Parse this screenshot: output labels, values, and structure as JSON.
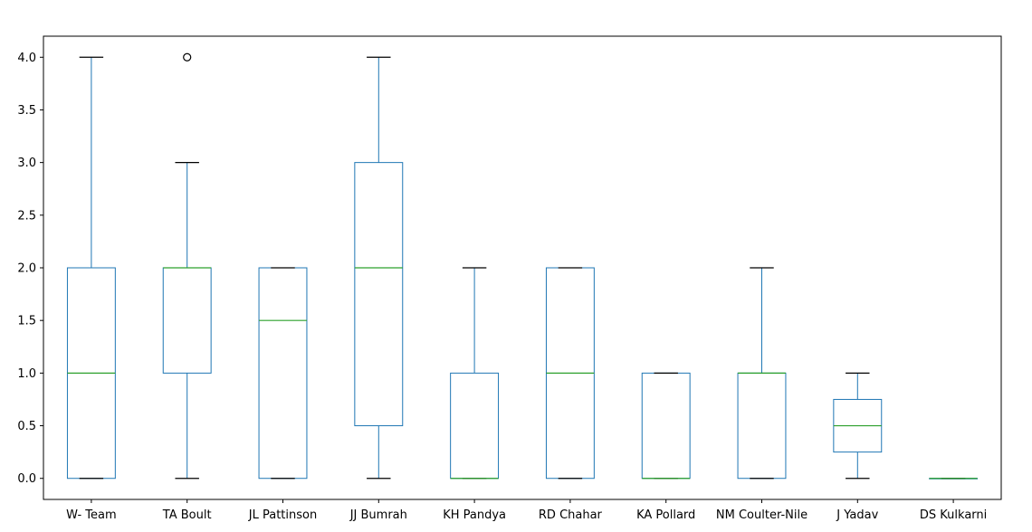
{
  "chart_data": {
    "type": "box",
    "categories": [
      "W- Team",
      "TA Boult",
      "JL Pattinson",
      "JJ Bumrah",
      "KH Pandya",
      "RD Chahar",
      "KA Pollard",
      "NM Coulter-Nile",
      "J Yadav",
      "DS Kulkarni"
    ],
    "yticks": [
      0.0,
      0.5,
      1.0,
      1.5,
      2.0,
      2.5,
      3.0,
      3.5,
      4.0
    ],
    "ytick_labels": [
      "0.0",
      "0.5",
      "1.0",
      "1.5",
      "2.0",
      "2.5",
      "3.0",
      "3.5",
      "4.0"
    ],
    "ylim": [
      -0.2,
      4.2
    ],
    "grid": false,
    "boxes": [
      {
        "name": "W- Team",
        "whislo": 0,
        "q1": 0,
        "med": 1,
        "q3": 2,
        "whishi": 4,
        "fliers": []
      },
      {
        "name": "TA Boult",
        "whislo": 0,
        "q1": 1,
        "med": 2,
        "q3": 2,
        "whishi": 3,
        "fliers": [
          4
        ]
      },
      {
        "name": "JL Pattinson",
        "whislo": 0,
        "q1": 0,
        "med": 1.5,
        "q3": 2,
        "whishi": 2,
        "fliers": []
      },
      {
        "name": "JJ Bumrah",
        "whislo": 0,
        "q1": 0.5,
        "med": 2,
        "q3": 3,
        "whishi": 4,
        "fliers": []
      },
      {
        "name": "KH Pandya",
        "whislo": 0,
        "q1": 0,
        "med": 0,
        "q3": 1,
        "whishi": 2,
        "fliers": []
      },
      {
        "name": "RD Chahar",
        "whislo": 0,
        "q1": 0,
        "med": 1,
        "q3": 2,
        "whishi": 2,
        "fliers": []
      },
      {
        "name": "KA Pollard",
        "whislo": 0,
        "q1": 0,
        "med": 0,
        "q3": 1,
        "whishi": 1,
        "fliers": []
      },
      {
        "name": "NM Coulter-Nile",
        "whislo": 0,
        "q1": 0,
        "med": 1,
        "q3": 1,
        "whishi": 2,
        "fliers": []
      },
      {
        "name": "J Yadav",
        "whislo": 0,
        "q1": 0.25,
        "med": 0.5,
        "q3": 0.75,
        "whishi": 1,
        "fliers": []
      },
      {
        "name": "DS Kulkarni",
        "whislo": 0,
        "q1": 0,
        "med": 0,
        "q3": 0,
        "whishi": 0,
        "fliers": []
      }
    ],
    "colors": {
      "box": "#1f77b4",
      "median": "#2ca02c",
      "cap": "#000000",
      "axis": "#000000"
    }
  }
}
